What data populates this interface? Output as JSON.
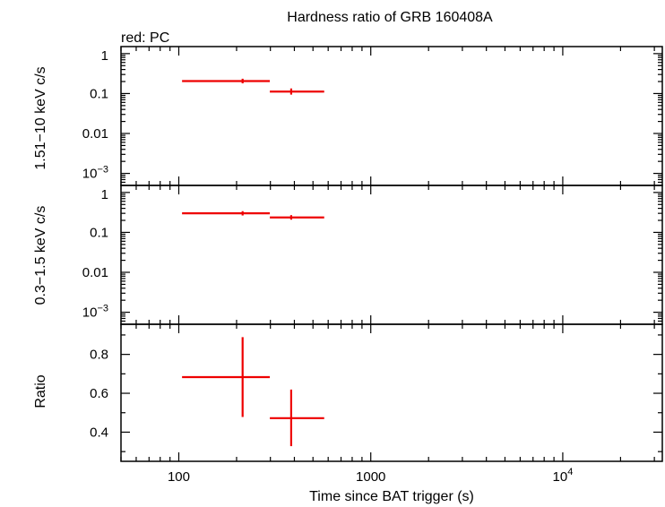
{
  "chart_data": {
    "type": "scatter",
    "title": "Hardness ratio of GRB 160408A",
    "legend_note": "red: PC",
    "xlabel": "Time since BAT trigger (s)",
    "xscale": "log",
    "xlim": [
      50,
      33000
    ],
    "x_tick_labels": [
      {
        "value": 100,
        "label": "100"
      },
      {
        "value": 1000,
        "label": "1000"
      },
      {
        "value": 10000,
        "label": "10",
        "sup": "4"
      }
    ],
    "series_color": "#ee0000",
    "panels": [
      {
        "id": "hard",
        "ylabel": "1.51−10 keV c/s",
        "yscale": "log",
        "ylim": [
          0.0005,
          1.5
        ],
        "y_tick_labels": [
          {
            "value": 1,
            "label": "1"
          },
          {
            "value": 0.1,
            "label": "0.1"
          },
          {
            "value": 0.01,
            "label": "0.01"
          },
          {
            "value": 0.001,
            "label": "10",
            "sup": "−3"
          }
        ],
        "points": [
          {
            "x": 215,
            "xlo": 104,
            "xhi": 298,
            "y": 0.205,
            "ylo": 0.18,
            "yhi": 0.235
          },
          {
            "x": 385,
            "xlo": 298,
            "xhi": 572,
            "y": 0.112,
            "ylo": 0.094,
            "yhi": 0.134
          }
        ]
      },
      {
        "id": "soft",
        "ylabel": "0.3−1.5 keV c/s",
        "yscale": "log",
        "ylim": [
          0.0005,
          1.5
        ],
        "y_tick_labels": [
          {
            "value": 1,
            "label": "1"
          },
          {
            "value": 0.1,
            "label": "0.1"
          },
          {
            "value": 0.01,
            "label": "0.01"
          },
          {
            "value": 0.001,
            "label": "10",
            "sup": "−3"
          }
        ],
        "points": [
          {
            "x": 215,
            "xlo": 104,
            "xhi": 298,
            "y": 0.3,
            "ylo": 0.265,
            "yhi": 0.34
          },
          {
            "x": 385,
            "xlo": 298,
            "xhi": 572,
            "y": 0.237,
            "ylo": 0.208,
            "yhi": 0.27
          }
        ]
      },
      {
        "id": "ratio",
        "ylabel": "Ratio",
        "yscale": "linear",
        "ylim": [
          0.25,
          0.955
        ],
        "y_tick_labels": [
          {
            "value": 0.4,
            "label": "0.4"
          },
          {
            "value": 0.6,
            "label": "0.6"
          },
          {
            "value": 0.8,
            "label": "0.8"
          }
        ],
        "points": [
          {
            "x": 215,
            "xlo": 104,
            "xhi": 298,
            "y": 0.683,
            "ylo": 0.478,
            "yhi": 0.889
          },
          {
            "x": 385,
            "xlo": 298,
            "xhi": 572,
            "y": 0.472,
            "ylo": 0.328,
            "yhi": 0.619
          }
        ]
      }
    ]
  }
}
